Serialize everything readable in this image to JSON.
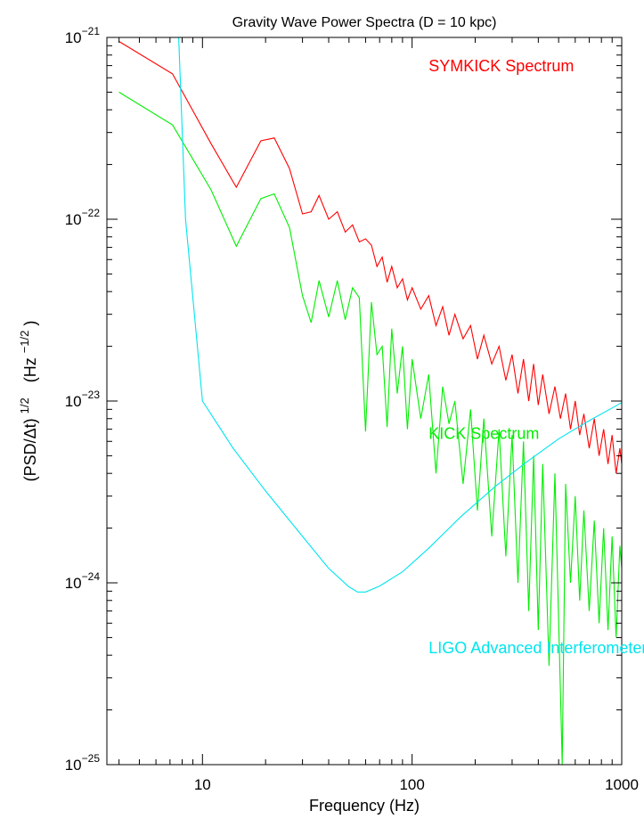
{
  "chart_data": {
    "type": "line",
    "title": "Gravity Wave Power Spectra (D = 10 kpc)",
    "xlabel": "Frequency (Hz)",
    "ylabel_parts": {
      "base": "(PSD/Δt)",
      "exp": "1/2",
      "unit_open": "(Hz",
      "unit_exp": "−1/2",
      "unit_close": ")"
    },
    "xscale": "log",
    "yscale": "log",
    "xlim": [
      3.5,
      1000
    ],
    "ylim": [
      1e-25,
      1e-21
    ],
    "x_ticks": [
      {
        "value": 10,
        "label": "10"
      },
      {
        "value": 100,
        "label": "100"
      },
      {
        "value": 1000,
        "label": "1000"
      }
    ],
    "y_ticks": [
      {
        "value": 1e-21,
        "mantissa": "10",
        "exp": "−21"
      },
      {
        "value": 1e-22,
        "mantissa": "10",
        "exp": "−22"
      },
      {
        "value": 1e-23,
        "mantissa": "10",
        "exp": "−23"
      },
      {
        "value": 1e-24,
        "mantissa": "10",
        "exp": "−24"
      },
      {
        "value": 1e-25,
        "mantissa": "10",
        "exp": "−25"
      }
    ],
    "grid": false,
    "series": [
      {
        "name": "SYMKICK Spectrum",
        "color": "#ff0000",
        "label_position": {
          "x": 120,
          "y": 6.5e-22
        },
        "x": [
          4,
          7.2,
          11,
          14.5,
          19,
          22,
          26,
          30,
          33,
          36,
          40,
          44,
          48,
          52,
          56,
          60,
          64,
          68,
          72,
          76,
          80,
          85,
          90,
          95,
          100,
          110,
          120,
          130,
          140,
          150,
          160,
          175,
          190,
          205,
          220,
          240,
          260,
          280,
          300,
          320,
          340,
          360,
          380,
          400,
          420,
          450,
          480,
          510,
          540,
          570,
          600,
          630,
          660,
          700,
          740,
          780,
          820,
          860,
          900,
          940,
          980,
          1000
        ],
        "y": [
          9.5e-22,
          6.3e-22,
          2.6e-22,
          1.5e-22,
          2.7e-22,
          2.8e-22,
          1.9e-22,
          1.07e-22,
          1.1e-22,
          1.35e-22,
          1e-22,
          1.1e-22,
          8.5e-23,
          9.3e-23,
          7.5e-23,
          7.8e-23,
          7.2e-23,
          5.5e-23,
          6.2e-23,
          4.5e-23,
          5.5e-23,
          4.2e-23,
          4.7e-23,
          3.6e-23,
          4.2e-23,
          3.2e-23,
          3.8e-23,
          2.6e-23,
          3.3e-23,
          2.3e-23,
          3e-23,
          2.2e-23,
          2.6e-23,
          1.7e-23,
          2.3e-23,
          1.6e-23,
          2e-23,
          1.3e-23,
          1.8e-23,
          1.1e-23,
          1.7e-23,
          1e-23,
          1.6e-23,
          9.5e-24,
          1.4e-23,
          8.5e-24,
          1.2e-23,
          8e-24,
          1.1e-23,
          7e-24,
          1e-23,
          6.5e-24,
          8.5e-24,
          5.5e-24,
          8e-24,
          5e-24,
          7e-24,
          4.5e-24,
          6.5e-24,
          4e-24,
          5.5e-24,
          4.5e-24
        ]
      },
      {
        "name": "KICK Spectrum",
        "color": "#00ee00",
        "label_position": {
          "x": 120,
          "y": 6.2e-24
        },
        "x": [
          4,
          7.2,
          11,
          14.5,
          19,
          22,
          26,
          30,
          33,
          36,
          40,
          44,
          48,
          52,
          56,
          60,
          64,
          68,
          72,
          76,
          80,
          85,
          90,
          95,
          100,
          110,
          120,
          130,
          140,
          150,
          160,
          175,
          190,
          205,
          220,
          240,
          260,
          280,
          300,
          320,
          340,
          360,
          380,
          400,
          420,
          450,
          480,
          510,
          520,
          540,
          570,
          600,
          630,
          660,
          700,
          740,
          780,
          820,
          860,
          900,
          940,
          980,
          1000
        ],
        "y": [
          5e-22,
          3.3e-22,
          1.45e-22,
          7.1e-23,
          1.3e-22,
          1.38e-22,
          9e-23,
          3.8e-23,
          2.7e-23,
          4.6e-23,
          2.9e-23,
          4.6e-23,
          2.8e-23,
          4.2e-23,
          3.7e-23,
          6.8e-24,
          3.5e-23,
          1.8e-23,
          2e-23,
          7.2e-24,
          2.5e-23,
          1.1e-23,
          2e-23,
          7e-24,
          1.7e-23,
          8e-24,
          1.4e-23,
          4e-24,
          1.2e-23,
          7.5e-24,
          1e-23,
          3.5e-24,
          9e-24,
          2.5e-24,
          8e-24,
          1.8e-24,
          7e-24,
          1.4e-24,
          6.5e-24,
          1e-24,
          6e-24,
          7e-25,
          5e-24,
          5.5e-25,
          4.5e-24,
          3.5e-25,
          4e-24,
          2.5e-25,
          1e-25,
          3.5e-24,
          1e-24,
          3e-24,
          8e-25,
          2.5e-24,
          7e-25,
          2.2e-24,
          6e-25,
          2e-24,
          5.5e-25,
          1.8e-24,
          5e-25,
          1.6e-24,
          1.2e-24
        ]
      },
      {
        "name": "LIGO Advanced Interferometer",
        "color": "#00e5ee",
        "label_position": {
          "x": 120,
          "y": 4.1e-25
        },
        "x": [
          7.7,
          8.3,
          10,
          14,
          20,
          30,
          40,
          50,
          55,
          60,
          70,
          90,
          120,
          170,
          250,
          350,
          500,
          700,
          1000
        ],
        "y": [
          1e-21,
          1e-22,
          1e-23,
          5.5e-24,
          3.2e-24,
          1.8e-24,
          1.2e-24,
          9.5e-25,
          8.9e-25,
          8.9e-25,
          9.6e-25,
          1.15e-24,
          1.55e-24,
          2.3e-24,
          3.4e-24,
          4.6e-24,
          6.2e-24,
          7.8e-24,
          9.8e-24
        ]
      }
    ]
  }
}
